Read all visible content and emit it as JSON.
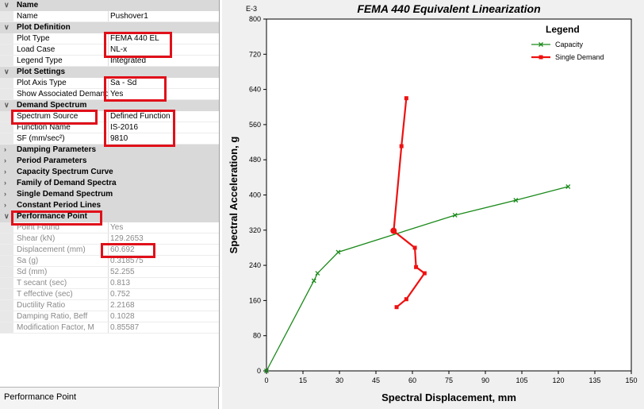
{
  "grid": {
    "rows": [
      {
        "type": "cat",
        "label": "Name",
        "twisty": "v"
      },
      {
        "type": "prop",
        "label": "Name",
        "value": "Pushover1"
      },
      {
        "type": "cat",
        "label": "Plot Definition",
        "twisty": "v"
      },
      {
        "type": "prop",
        "label": "Plot Type",
        "value": "FEMA 440 EL"
      },
      {
        "type": "prop",
        "label": "Load Case",
        "value": "NL-x"
      },
      {
        "type": "prop",
        "label": "Legend Type",
        "value": "Integrated"
      },
      {
        "type": "cat",
        "label": "Plot Settings",
        "twisty": "v"
      },
      {
        "type": "prop",
        "label": "Plot Axis Type",
        "value": "Sa - Sd"
      },
      {
        "type": "prop",
        "label": "Show Associated Demand",
        "value": "Yes"
      },
      {
        "type": "cat",
        "label": "Demand Spectrum",
        "twisty": "v"
      },
      {
        "type": "prop",
        "label": "Spectrum Source",
        "value": "Defined Function"
      },
      {
        "type": "prop",
        "label": "Function Name",
        "value": "IS-2016"
      },
      {
        "type": "prop",
        "label": "SF (mm/sec²)",
        "value": "9810"
      },
      {
        "type": "cat",
        "label": "Damping Parameters",
        "twisty": ">"
      },
      {
        "type": "cat",
        "label": "Period Parameters",
        "twisty": ">"
      },
      {
        "type": "cat",
        "label": "Capacity Spectrum Curve",
        "twisty": ">"
      },
      {
        "type": "cat",
        "label": "Family of Demand Spectra",
        "twisty": ">"
      },
      {
        "type": "cat",
        "label": "Single Demand Spectrum",
        "twisty": ">"
      },
      {
        "type": "cat",
        "label": "Constant Period Lines",
        "twisty": ">"
      },
      {
        "type": "cat",
        "label": "Performance Point",
        "twisty": "v"
      },
      {
        "type": "gray",
        "label": "Point Found",
        "value": "Yes"
      },
      {
        "type": "gray",
        "label": "Shear (kN)",
        "value": "129.2653"
      },
      {
        "type": "gray",
        "label": "Displacement (mm)",
        "value": "60.692"
      },
      {
        "type": "gray",
        "label": "Sa (g)",
        "value": "0.318575"
      },
      {
        "type": "gray",
        "label": "Sd (mm)",
        "value": "52.255"
      },
      {
        "type": "gray",
        "label": "T secant (sec)",
        "value": "0.813"
      },
      {
        "type": "gray",
        "label": "T effective (sec)",
        "value": "0.752"
      },
      {
        "type": "gray",
        "label": "Ductility Ratio",
        "value": "2.2168"
      },
      {
        "type": "gray",
        "label": "Damping Ratio, Beff",
        "value": "0.1028"
      },
      {
        "type": "gray",
        "label": "Modification Factor, M",
        "value": "0.85587"
      }
    ]
  },
  "status_text": "Performance Point",
  "chart_data": {
    "type": "line",
    "title": "FEMA 440 Equivalent Linearization",
    "xlabel": "Spectral Displacement, mm",
    "ylabel": "Spectral Acceleration, g",
    "y_multiplier_label": "E-3",
    "xlim": [
      0,
      150
    ],
    "ylim": [
      0,
      800
    ],
    "xticks": [
      0,
      15,
      30,
      45,
      60,
      75,
      90,
      105,
      120,
      135,
      150
    ],
    "yticks": [
      0,
      80,
      160,
      240,
      320,
      400,
      480,
      560,
      640,
      720,
      800
    ],
    "legend_title": "Legend",
    "legend_position": "top-right",
    "series": [
      {
        "name": "Capacity",
        "color": "#1a8a1a",
        "marker": "x",
        "x": [
          0,
          19.5,
          21,
          29.5,
          77.5,
          102.5,
          124
        ],
        "y": [
          0,
          205,
          222,
          270,
          354,
          388,
          419
        ]
      },
      {
        "name": "Single Demand",
        "color": "#ee1111",
        "marker": "square",
        "x": [
          57.5,
          55.5,
          52.3,
          61,
          61.5,
          65,
          57.5,
          53.5
        ],
        "y": [
          620,
          511,
          318,
          280,
          236,
          222,
          163,
          145
        ]
      }
    ],
    "performance_point": {
      "x": 52.255,
      "y": 318.575
    }
  }
}
